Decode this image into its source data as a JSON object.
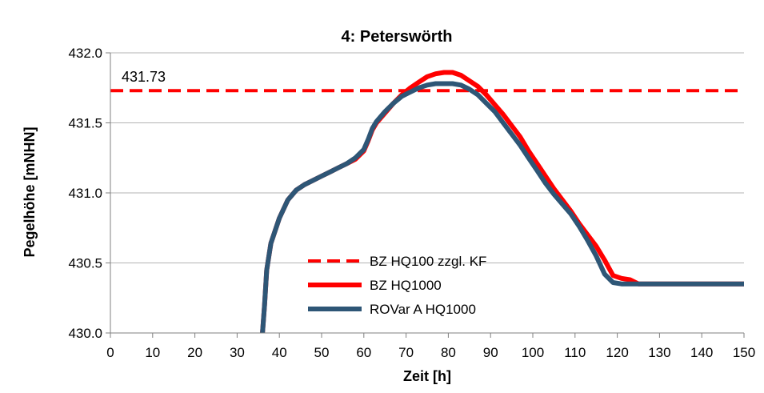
{
  "chart_data": {
    "type": "line",
    "title": "4: Peterswörth",
    "xlabel": "Zeit [h]",
    "ylabel": "Pegelhöhe [mNHN]",
    "xlim": [
      0,
      150
    ],
    "ylim": [
      430.0,
      432.0
    ],
    "x_ticks": [
      "0",
      "10",
      "20",
      "30",
      "40",
      "50",
      "60",
      "70",
      "80",
      "90",
      "100",
      "110",
      "120",
      "130",
      "140",
      "150"
    ],
    "y_ticks": [
      "430.0",
      "430.5",
      "431.0",
      "431.5",
      "432.0"
    ],
    "grid": "horizontal",
    "legend_position": "bottom-center",
    "annotation": {
      "text": "431.73",
      "x": 2,
      "y": 431.73
    },
    "series": [
      {
        "name": "BZ HQ100 zzgl. KF",
        "color": "#ff0000",
        "style": "dashed",
        "x": [
          0,
          150
        ],
        "y": [
          431.73,
          431.73
        ]
      },
      {
        "name": "BZ HQ1000",
        "color": "#ff0000",
        "style": "solid",
        "x": [
          36,
          36.5,
          37,
          38,
          40,
          42,
          44,
          46,
          48,
          50,
          52,
          54,
          56,
          58,
          60,
          61,
          62,
          63,
          65,
          67,
          69,
          71,
          73,
          75,
          77,
          79,
          81,
          83,
          85,
          87,
          89,
          91,
          93,
          95,
          97,
          99,
          101,
          103,
          105,
          107,
          109,
          111,
          113,
          115,
          117,
          119,
          121,
          123,
          125,
          150
        ],
        "y": [
          430.0,
          430.2,
          430.45,
          430.64,
          430.82,
          430.95,
          431.02,
          431.06,
          431.09,
          431.12,
          431.15,
          431.18,
          431.21,
          431.24,
          431.3,
          431.37,
          431.45,
          431.5,
          431.57,
          431.64,
          431.7,
          431.75,
          431.79,
          431.83,
          431.85,
          431.86,
          431.86,
          431.84,
          431.8,
          431.76,
          431.7,
          431.63,
          431.56,
          431.48,
          431.4,
          431.3,
          431.21,
          431.12,
          431.03,
          430.95,
          430.87,
          430.78,
          430.7,
          430.62,
          430.52,
          430.41,
          430.39,
          430.38,
          430.35,
          430.35
        ]
      },
      {
        "name": "ROVar A HQ1000",
        "color": "#2e5676",
        "style": "solid",
        "x": [
          36,
          36.5,
          37,
          38,
          40,
          42,
          44,
          46,
          48,
          50,
          52,
          54,
          56,
          58,
          60,
          61,
          62,
          63,
          65,
          67,
          69,
          71,
          73,
          75,
          77,
          79,
          81,
          83,
          85,
          87,
          89,
          91,
          93,
          95,
          97,
          99,
          101,
          103,
          105,
          107,
          109,
          111,
          113,
          115,
          117,
          119,
          121,
          123,
          125,
          150
        ],
        "y": [
          430.0,
          430.2,
          430.45,
          430.64,
          430.82,
          430.95,
          431.02,
          431.06,
          431.09,
          431.12,
          431.15,
          431.18,
          431.21,
          431.25,
          431.31,
          431.38,
          431.46,
          431.51,
          431.58,
          431.64,
          431.69,
          431.72,
          431.75,
          431.77,
          431.78,
          431.78,
          431.78,
          431.77,
          431.74,
          431.7,
          431.64,
          431.58,
          431.5,
          431.42,
          431.34,
          431.25,
          431.16,
          431.07,
          430.99,
          430.92,
          430.85,
          430.76,
          430.66,
          430.55,
          430.42,
          430.36,
          430.35,
          430.35,
          430.35,
          430.35
        ]
      }
    ]
  }
}
